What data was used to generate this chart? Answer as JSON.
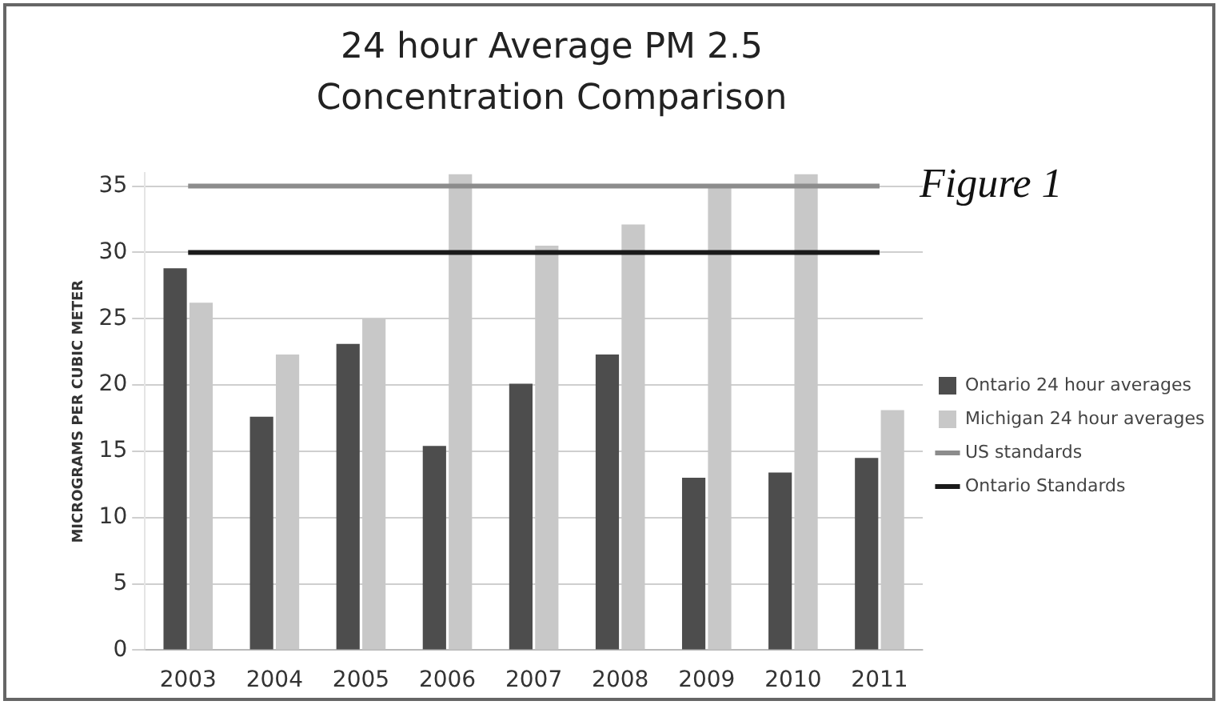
{
  "chart_data": {
    "type": "bar",
    "title": "24 hour Average PM 2.5 Concentration Comparison",
    "ylabel": "MICROGRAMS PER CUBIC METER",
    "annotations": [
      "Figure 1"
    ],
    "categories": [
      "2003",
      "2004",
      "2005",
      "2006",
      "2007",
      "2008",
      "2009",
      "2010",
      "2011"
    ],
    "series": [
      {
        "name": "Ontario 24 hour averages",
        "color": "#4d4d4d",
        "values": [
          28.8,
          17.6,
          23.1,
          15.4,
          20.1,
          22.3,
          13.0,
          13.4,
          14.5
        ]
      },
      {
        "name": "Michigan 24 hour averages",
        "color": "#c8c8c8",
        "values": [
          26.2,
          22.3,
          25.0,
          35.9,
          30.5,
          32.1,
          35.0,
          35.9,
          18.1
        ]
      },
      {
        "name": "US standards",
        "type": "line",
        "color": "#8c8c8c",
        "values": [
          35,
          35,
          35,
          35,
          35,
          35,
          35,
          35,
          35
        ]
      },
      {
        "name": "Ontario Standards",
        "type": "line",
        "color": "#1a1a1a",
        "values": [
          30,
          30,
          30,
          30,
          30,
          30,
          30,
          30,
          30
        ]
      }
    ],
    "ylim": [
      0,
      36
    ],
    "yticks": [
      0,
      5,
      10,
      15,
      20,
      25,
      30,
      35
    ],
    "grid": "y",
    "legend": "right",
    "marker": "none",
    "line_style": "solid"
  }
}
